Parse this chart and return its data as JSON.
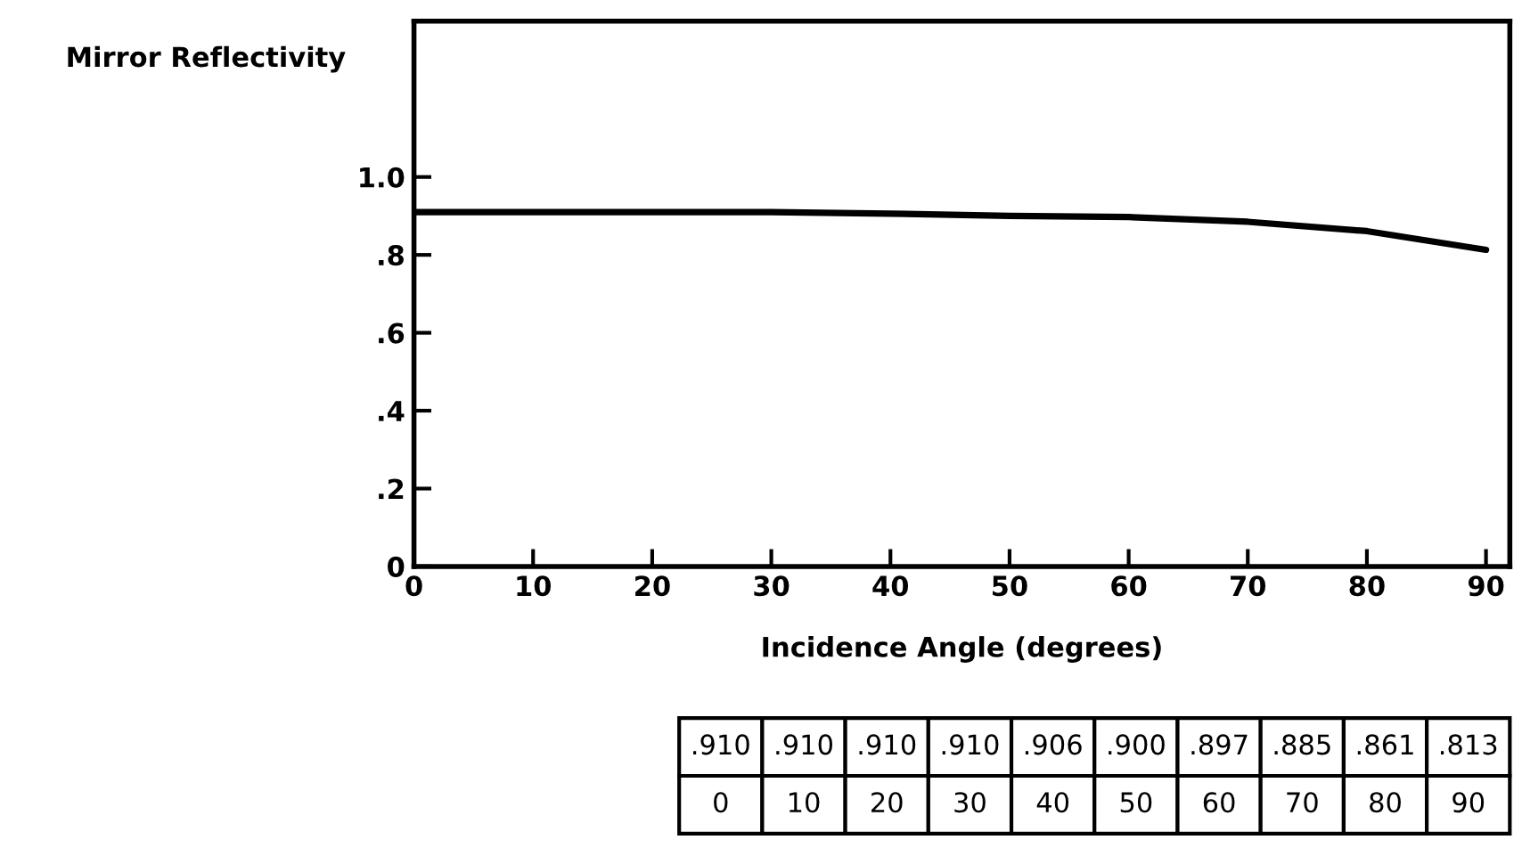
{
  "chart_data": {
    "type": "line",
    "ylabel": "Mirror Reflectivity",
    "xlabel": "Incidence Angle (degrees)",
    "x": [
      0,
      10,
      20,
      30,
      40,
      50,
      60,
      70,
      80,
      90
    ],
    "series": [
      {
        "color": "#000000",
        "values": [
          0.91,
          0.91,
          0.91,
          0.91,
          0.906,
          0.9,
          0.897,
          0.885,
          0.861,
          0.813
        ]
      }
    ],
    "annotations": [
      ".910",
      ".910",
      ".910",
      ".910",
      ".906",
      ".900",
      ".897",
      ".885",
      ".861",
      ".813",
      "0",
      "10",
      "20",
      "30",
      "40",
      "50",
      "60",
      "70",
      "80",
      "90"
    ],
    "xlim": [
      0,
      92
    ],
    "ylim": [
      0,
      1.4
    ],
    "xticks": [
      0,
      10,
      20,
      30,
      40,
      50,
      60,
      70,
      80,
      90
    ],
    "yticks": [
      0,
      {
        "value": 0.2,
        "label": ".2"
      },
      {
        "value": 0.4,
        "label": ".4"
      },
      {
        "value": 0.6,
        "label": ".6"
      },
      {
        "value": 0.8,
        "label": ".8"
      },
      {
        "value": 1.0,
        "label": "1.0"
      }
    ],
    "grid": false,
    "legend": false,
    "marker": "none",
    "line_style": "solid"
  }
}
